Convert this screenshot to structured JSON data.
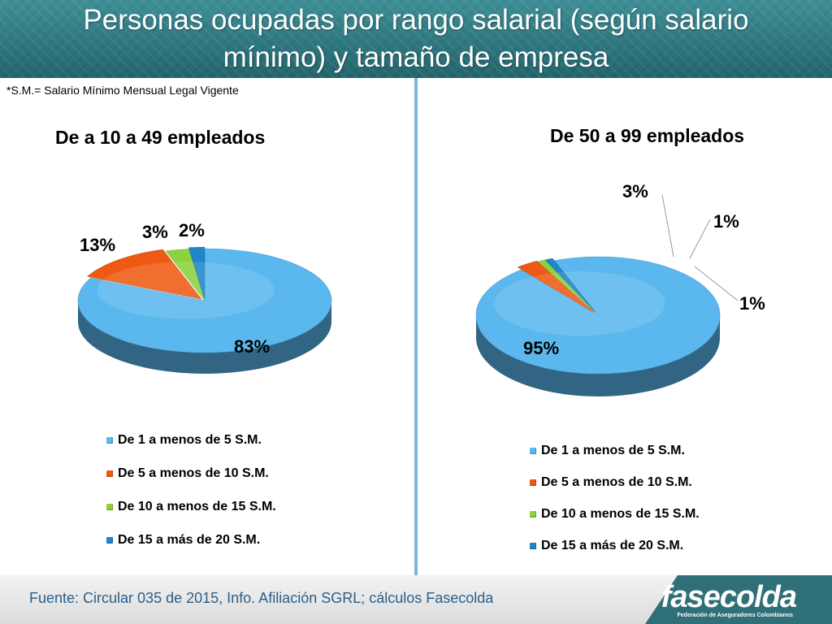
{
  "header": {
    "title_line1": "Personas ocupadas por rango salarial (según salario",
    "title_line2": "mínimo) y tamaño de empresa"
  },
  "note": "*S.M.= Salario Mínimo Mensual Legal Vigente",
  "colors": {
    "series": [
      "#5bb8ee",
      "#ee5a14",
      "#8cd23c",
      "#1f86c9"
    ],
    "header": "#2f7880",
    "divider": "#7fb3da",
    "footer_text": "#2b5f8a"
  },
  "chart_data": [
    {
      "type": "pie",
      "title": "De a 10 a 49 empleados",
      "categories": [
        "De 1 a menos de 5 S.M.",
        "De 5 a menos de 10 S.M.",
        "De 10 a menos de 15 S.M.",
        "De 15 a más de 20 S.M."
      ],
      "values": [
        83,
        13,
        3,
        2
      ],
      "labels": [
        "83%",
        "13%",
        "3%",
        "2%"
      ],
      "style": "3d",
      "legend": "bottom"
    },
    {
      "type": "pie",
      "title": "De 50 a 99 empleados",
      "categories": [
        "De 1 a menos de 5 S.M.",
        "De 5 a menos de 10 S.M.",
        "De 10 a menos de 15 S.M.",
        "De 15 a más de 20 S.M."
      ],
      "values": [
        95,
        3,
        1,
        1
      ],
      "labels": [
        "95%",
        "3%",
        "1%",
        "1%"
      ],
      "style": "3d",
      "legend": "bottom"
    }
  ],
  "footer": {
    "source": "Fuente: Circular 035 de 2015, Info. Afiliación SGRL; cálculos Fasecolda",
    "logo": "fasecolda",
    "logo_subtitle": "Federación de Aseguradores Colombianos"
  }
}
